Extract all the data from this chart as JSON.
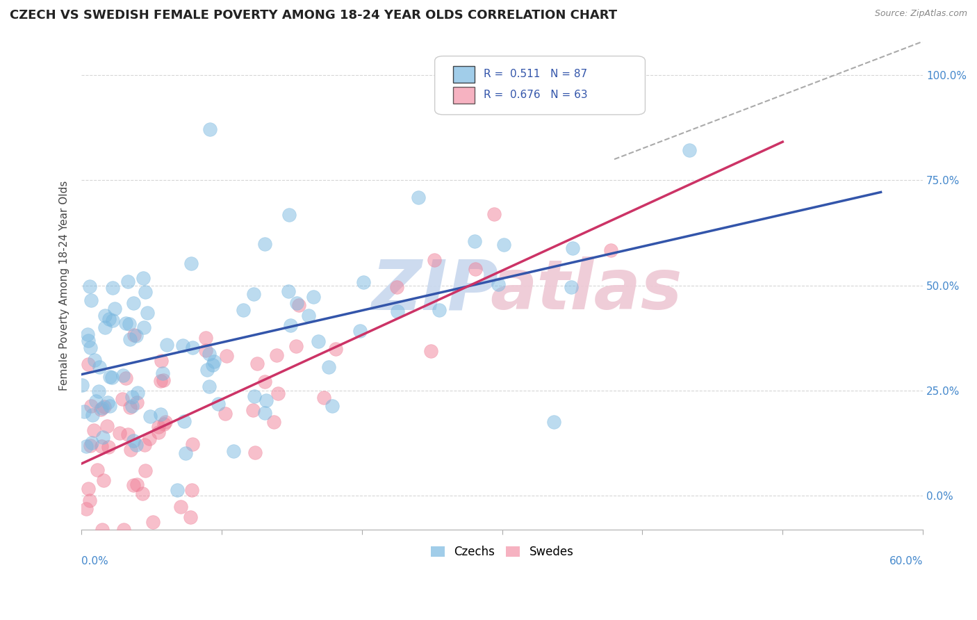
{
  "title": "CZECH VS SWEDISH FEMALE POVERTY AMONG 18-24 YEAR OLDS CORRELATION CHART",
  "source": "Source: ZipAtlas.com",
  "ylabel": "Female Poverty Among 18-24 Year Olds",
  "xlim": [
    0.0,
    60.0
  ],
  "ylim": [
    -8.0,
    108.0
  ],
  "yticks": [
    0,
    25,
    50,
    75,
    100
  ],
  "ytick_labels": [
    "0.0%",
    "25.0%",
    "50.0%",
    "75.0%",
    "100.0%"
  ],
  "czech_R": 0.511,
  "czech_N": 87,
  "swedish_R": 0.676,
  "swedish_N": 63,
  "czech_color": "#7ab8e0",
  "swedish_color": "#f08098",
  "background_color": "#ffffff",
  "grid_color": "#cccccc",
  "title_fontsize": 13,
  "czech_line_color": "#3355aa",
  "swedish_line_color": "#cc3366",
  "ref_line_color": "#aaaaaa",
  "watermark_zip_color": "#c8d8ee",
  "watermark_atlas_color": "#eec8d4"
}
